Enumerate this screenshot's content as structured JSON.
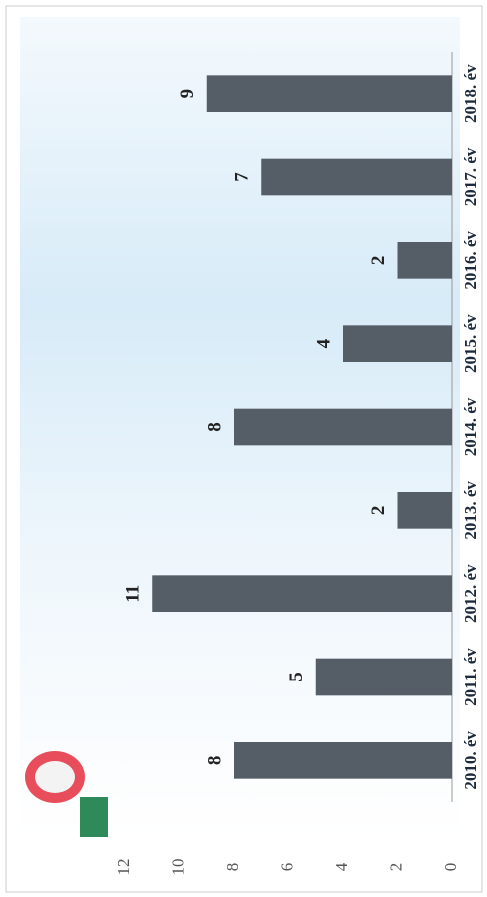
{
  "chart_data": {
    "type": "bar",
    "categories": [
      "2010. év",
      "2011. év",
      "2012. év",
      "2013. év",
      "2014. év",
      "2015. év",
      "2016. év",
      "2017. év",
      "2018. év"
    ],
    "values": [
      8,
      5,
      11,
      2,
      8,
      4,
      2,
      7,
      9
    ],
    "color": "#555d66",
    "ylim": [
      0,
      12
    ],
    "yticks": [
      0,
      2,
      4,
      6,
      8,
      10,
      12
    ],
    "grid": false
  }
}
